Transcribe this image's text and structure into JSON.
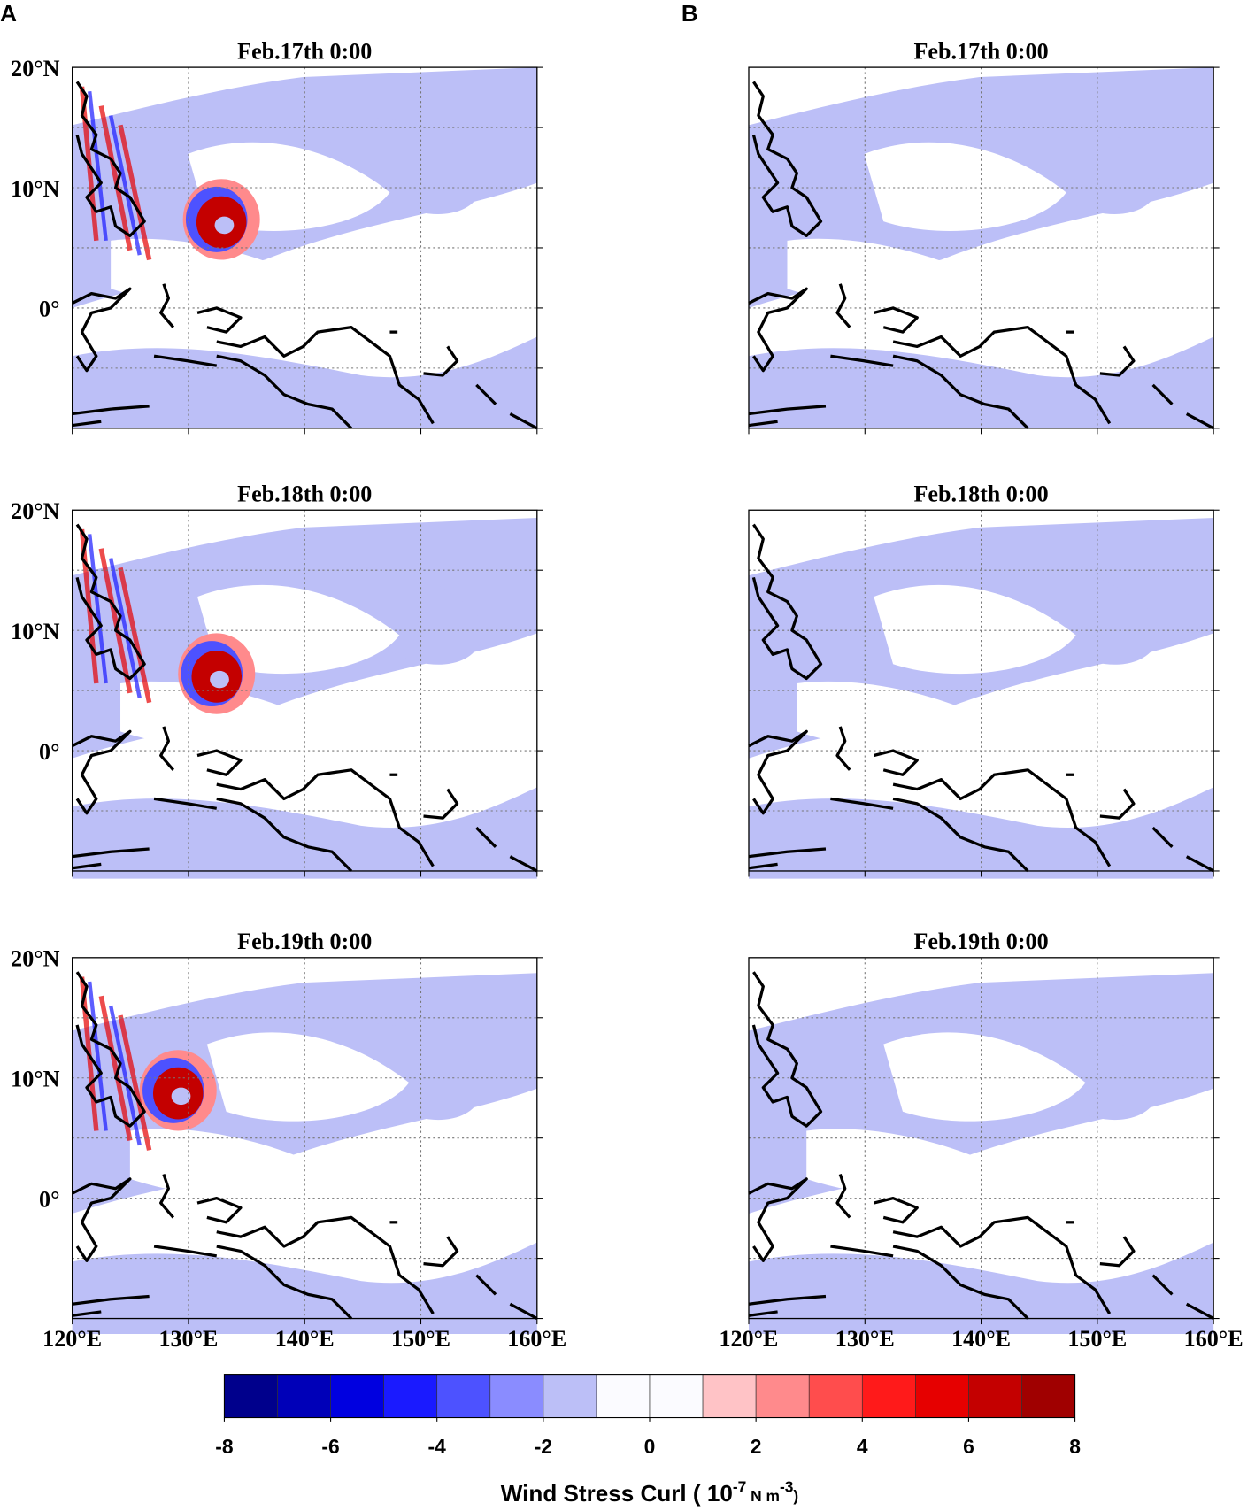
{
  "panels": [
    {
      "letter": "A",
      "maps": [
        {
          "title": "Feb.17th 0:00"
        },
        {
          "title": "Feb.18th 0:00"
        },
        {
          "title": "Feb.19th 0:00"
        }
      ]
    },
    {
      "letter": "B",
      "maps": [
        {
          "title": "Feb.17th 0:00"
        },
        {
          "title": "Feb.18th 0:00"
        },
        {
          "title": "Feb.19th 0:00"
        }
      ]
    }
  ],
  "axes": {
    "lat_labels": [
      "20°N",
      "10°N",
      "0°"
    ],
    "lon_labels": [
      "120°E",
      "130°E",
      "140°E",
      "150°E",
      "160°E"
    ]
  },
  "colorbar": {
    "clim": [
      -8,
      8
    ],
    "ticks": [
      -8,
      -6,
      -4,
      -2,
      0,
      2,
      4,
      6,
      8
    ],
    "colors": [
      "#00008c",
      "#0000b8",
      "#0000e0",
      "#1a1aff",
      "#4d52ff",
      "#8a8cff",
      "#bcbff7",
      "#fbfbff",
      "#fbfbff",
      "#ffc3c6",
      "#ff8a8c",
      "#ff4d4d",
      "#ff1a1a",
      "#e60000",
      "#c40000",
      "#a00000"
    ],
    "label": {
      "text": "Wind Stress Curl ( 10",
      "exp1": "-7",
      "mid": " N m",
      "exp2": "-3",
      "end": ")"
    }
  }
}
